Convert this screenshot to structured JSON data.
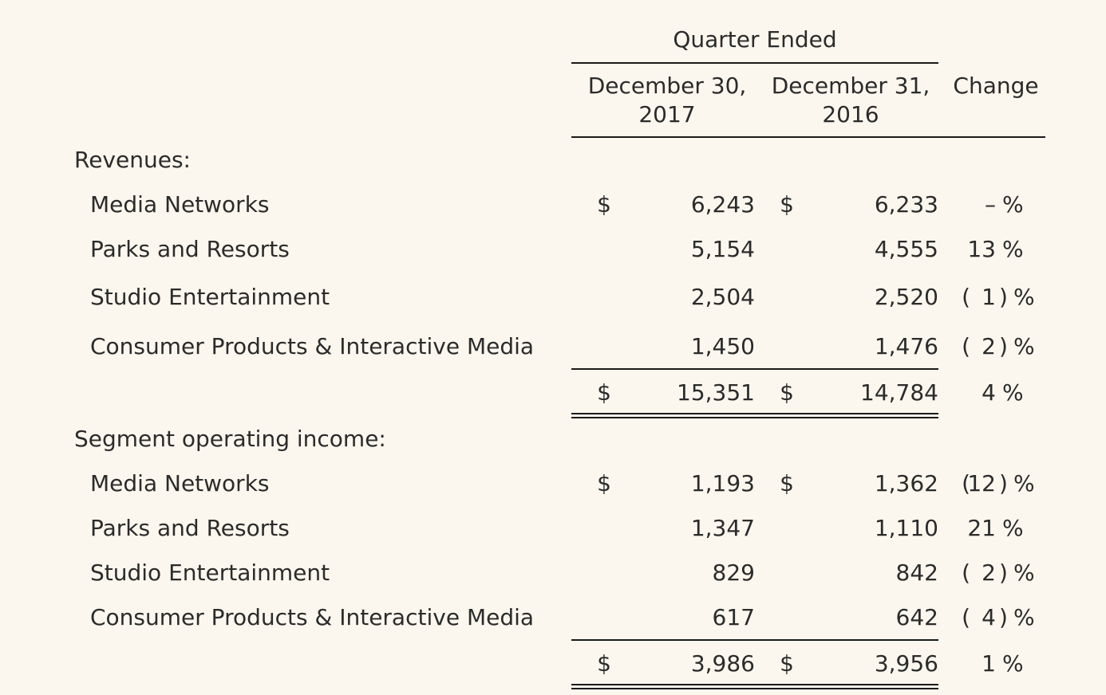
{
  "header": {
    "group": "Quarter Ended",
    "col1_line1": "December 30,",
    "col1_line2": "2017",
    "col2_line1": "December 31,",
    "col2_line2": "2016",
    "change": "Change"
  },
  "revenues": {
    "title": "Revenues:",
    "rows": [
      {
        "label": "Media Networks",
        "dollar1": "$",
        "v2017": "6,243",
        "dollar2": "$",
        "v2016": "6,233",
        "change": "–",
        "open": "",
        "close": "",
        "pct": "%"
      },
      {
        "label": "Parks and Resorts",
        "dollar1": "",
        "v2017": "5,154",
        "dollar2": "",
        "v2016": "4,555",
        "change": "13",
        "open": "",
        "close": "",
        "pct": "%"
      },
      {
        "label": "Studio Entertainment",
        "dollar1": "",
        "v2017": "2,504",
        "dollar2": "",
        "v2016": "2,520",
        "change": "1",
        "open": "(",
        "close": ")",
        "pct": "%"
      },
      {
        "label": "Consumer Products & Interactive Media",
        "dollar1": "",
        "v2017": "1,450",
        "dollar2": "",
        "v2016": "1,476",
        "change": "2",
        "open": "(",
        "close": ")",
        "pct": "%"
      }
    ],
    "total": {
      "dollar1": "$",
      "v2017": "15,351",
      "dollar2": "$",
      "v2016": "14,784",
      "change": "4",
      "pct": "%"
    }
  },
  "income": {
    "title": "Segment operating income:",
    "rows": [
      {
        "label": "Media Networks",
        "dollar1": "$",
        "v2017": "1,193",
        "dollar2": "$",
        "v2016": "1,362",
        "change": "12",
        "open": "(",
        "close": ")",
        "pct": "%"
      },
      {
        "label": "Parks and Resorts",
        "dollar1": "",
        "v2017": "1,347",
        "dollar2": "",
        "v2016": "1,110",
        "change": "21",
        "open": "",
        "close": "",
        "pct": "%"
      },
      {
        "label": "Studio Entertainment",
        "dollar1": "",
        "v2017": "829",
        "dollar2": "",
        "v2016": "842",
        "change": "2",
        "open": "(",
        "close": ")",
        "pct": "%"
      },
      {
        "label": "Consumer Products & Interactive Media",
        "dollar1": "",
        "v2017": "617",
        "dollar2": "",
        "v2016": "642",
        "change": "4",
        "open": "(",
        "close": ")",
        "pct": "%"
      }
    ],
    "total": {
      "dollar1": "$",
      "v2017": "3,986",
      "dollar2": "$",
      "v2016": "3,956",
      "change": "1",
      "pct": "%"
    }
  }
}
